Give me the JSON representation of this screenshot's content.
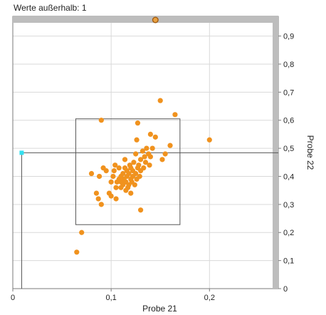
{
  "status_text": "Werte außerhalb: 1",
  "colors": {
    "point": "#f0921e",
    "grid": "#d9d9d9",
    "border": "#7a7a7a",
    "scrollbar": "#bdbdbd",
    "crosshair_marker": "#33e0f0",
    "outlier_marker": "#a05a10"
  },
  "chart_data": {
    "type": "scatter",
    "xlabel": "Probe 21",
    "ylabel": "Probe 22",
    "xlim": [
      0,
      0.27
    ],
    "ylim": [
      0,
      0.97
    ],
    "x_ticks": [
      {
        "value": 0,
        "label": "0"
      },
      {
        "value": 0.1,
        "label": "0,1"
      },
      {
        "value": 0.2,
        "label": "0,2"
      }
    ],
    "y_ticks": [
      {
        "value": 0,
        "label": "0"
      },
      {
        "value": 0.1,
        "label": "0,1"
      },
      {
        "value": 0.2,
        "label": "0,2"
      },
      {
        "value": 0.3,
        "label": "0,3"
      },
      {
        "value": 0.4,
        "label": "0,4"
      },
      {
        "value": 0.5,
        "label": "0,5"
      },
      {
        "value": 0.6,
        "label": "0,6"
      },
      {
        "value": 0.7,
        "label": "0,7"
      },
      {
        "value": 0.8,
        "label": "0,8"
      },
      {
        "value": 0.9,
        "label": "0,9"
      }
    ],
    "grid": true,
    "selection_box": {
      "x_min": 0.064,
      "x_max": 0.17,
      "y_min": 0.228,
      "y_max": 0.605
    },
    "crosshair": {
      "x": 0.009,
      "y": 0.484
    },
    "outlier_marker_x": 0.145,
    "points": [
      [
        0.065,
        0.13
      ],
      [
        0.07,
        0.2
      ],
      [
        0.08,
        0.41
      ],
      [
        0.085,
        0.34
      ],
      [
        0.087,
        0.32
      ],
      [
        0.088,
        0.4
      ],
      [
        0.09,
        0.3
      ],
      [
        0.09,
        0.6
      ],
      [
        0.092,
        0.43
      ],
      [
        0.095,
        0.42
      ],
      [
        0.098,
        0.34
      ],
      [
        0.1,
        0.33
      ],
      [
        0.1,
        0.38
      ],
      [
        0.102,
        0.4
      ],
      [
        0.103,
        0.42
      ],
      [
        0.104,
        0.44
      ],
      [
        0.105,
        0.32
      ],
      [
        0.105,
        0.36
      ],
      [
        0.106,
        0.38
      ],
      [
        0.108,
        0.39
      ],
      [
        0.108,
        0.43
      ],
      [
        0.11,
        0.36
      ],
      [
        0.11,
        0.38
      ],
      [
        0.11,
        0.4
      ],
      [
        0.112,
        0.37
      ],
      [
        0.112,
        0.41
      ],
      [
        0.113,
        0.39
      ],
      [
        0.114,
        0.43
      ],
      [
        0.114,
        0.46
      ],
      [
        0.115,
        0.35
      ],
      [
        0.115,
        0.38
      ],
      [
        0.116,
        0.4
      ],
      [
        0.116,
        0.42
      ],
      [
        0.117,
        0.36
      ],
      [
        0.118,
        0.37
      ],
      [
        0.118,
        0.41
      ],
      [
        0.119,
        0.44
      ],
      [
        0.12,
        0.34
      ],
      [
        0.12,
        0.39
      ],
      [
        0.12,
        0.43
      ],
      [
        0.121,
        0.38
      ],
      [
        0.122,
        0.4
      ],
      [
        0.122,
        0.42
      ],
      [
        0.123,
        0.45
      ],
      [
        0.124,
        0.37
      ],
      [
        0.125,
        0.41
      ],
      [
        0.125,
        0.48
      ],
      [
        0.126,
        0.39
      ],
      [
        0.126,
        0.53
      ],
      [
        0.127,
        0.43
      ],
      [
        0.127,
        0.59
      ],
      [
        0.128,
        0.44
      ],
      [
        0.129,
        0.4
      ],
      [
        0.13,
        0.28
      ],
      [
        0.13,
        0.42
      ],
      [
        0.13,
        0.46
      ],
      [
        0.132,
        0.49
      ],
      [
        0.133,
        0.43
      ],
      [
        0.134,
        0.47
      ],
      [
        0.135,
        0.45
      ],
      [
        0.136,
        0.5
      ],
      [
        0.138,
        0.48
      ],
      [
        0.139,
        0.44
      ],
      [
        0.14,
        0.47
      ],
      [
        0.14,
        0.55
      ],
      [
        0.142,
        0.5
      ],
      [
        0.145,
        0.54
      ],
      [
        0.15,
        0.67
      ],
      [
        0.152,
        0.46
      ],
      [
        0.155,
        0.48
      ],
      [
        0.16,
        0.51
      ],
      [
        0.165,
        0.62
      ],
      [
        0.2,
        0.53
      ]
    ]
  }
}
